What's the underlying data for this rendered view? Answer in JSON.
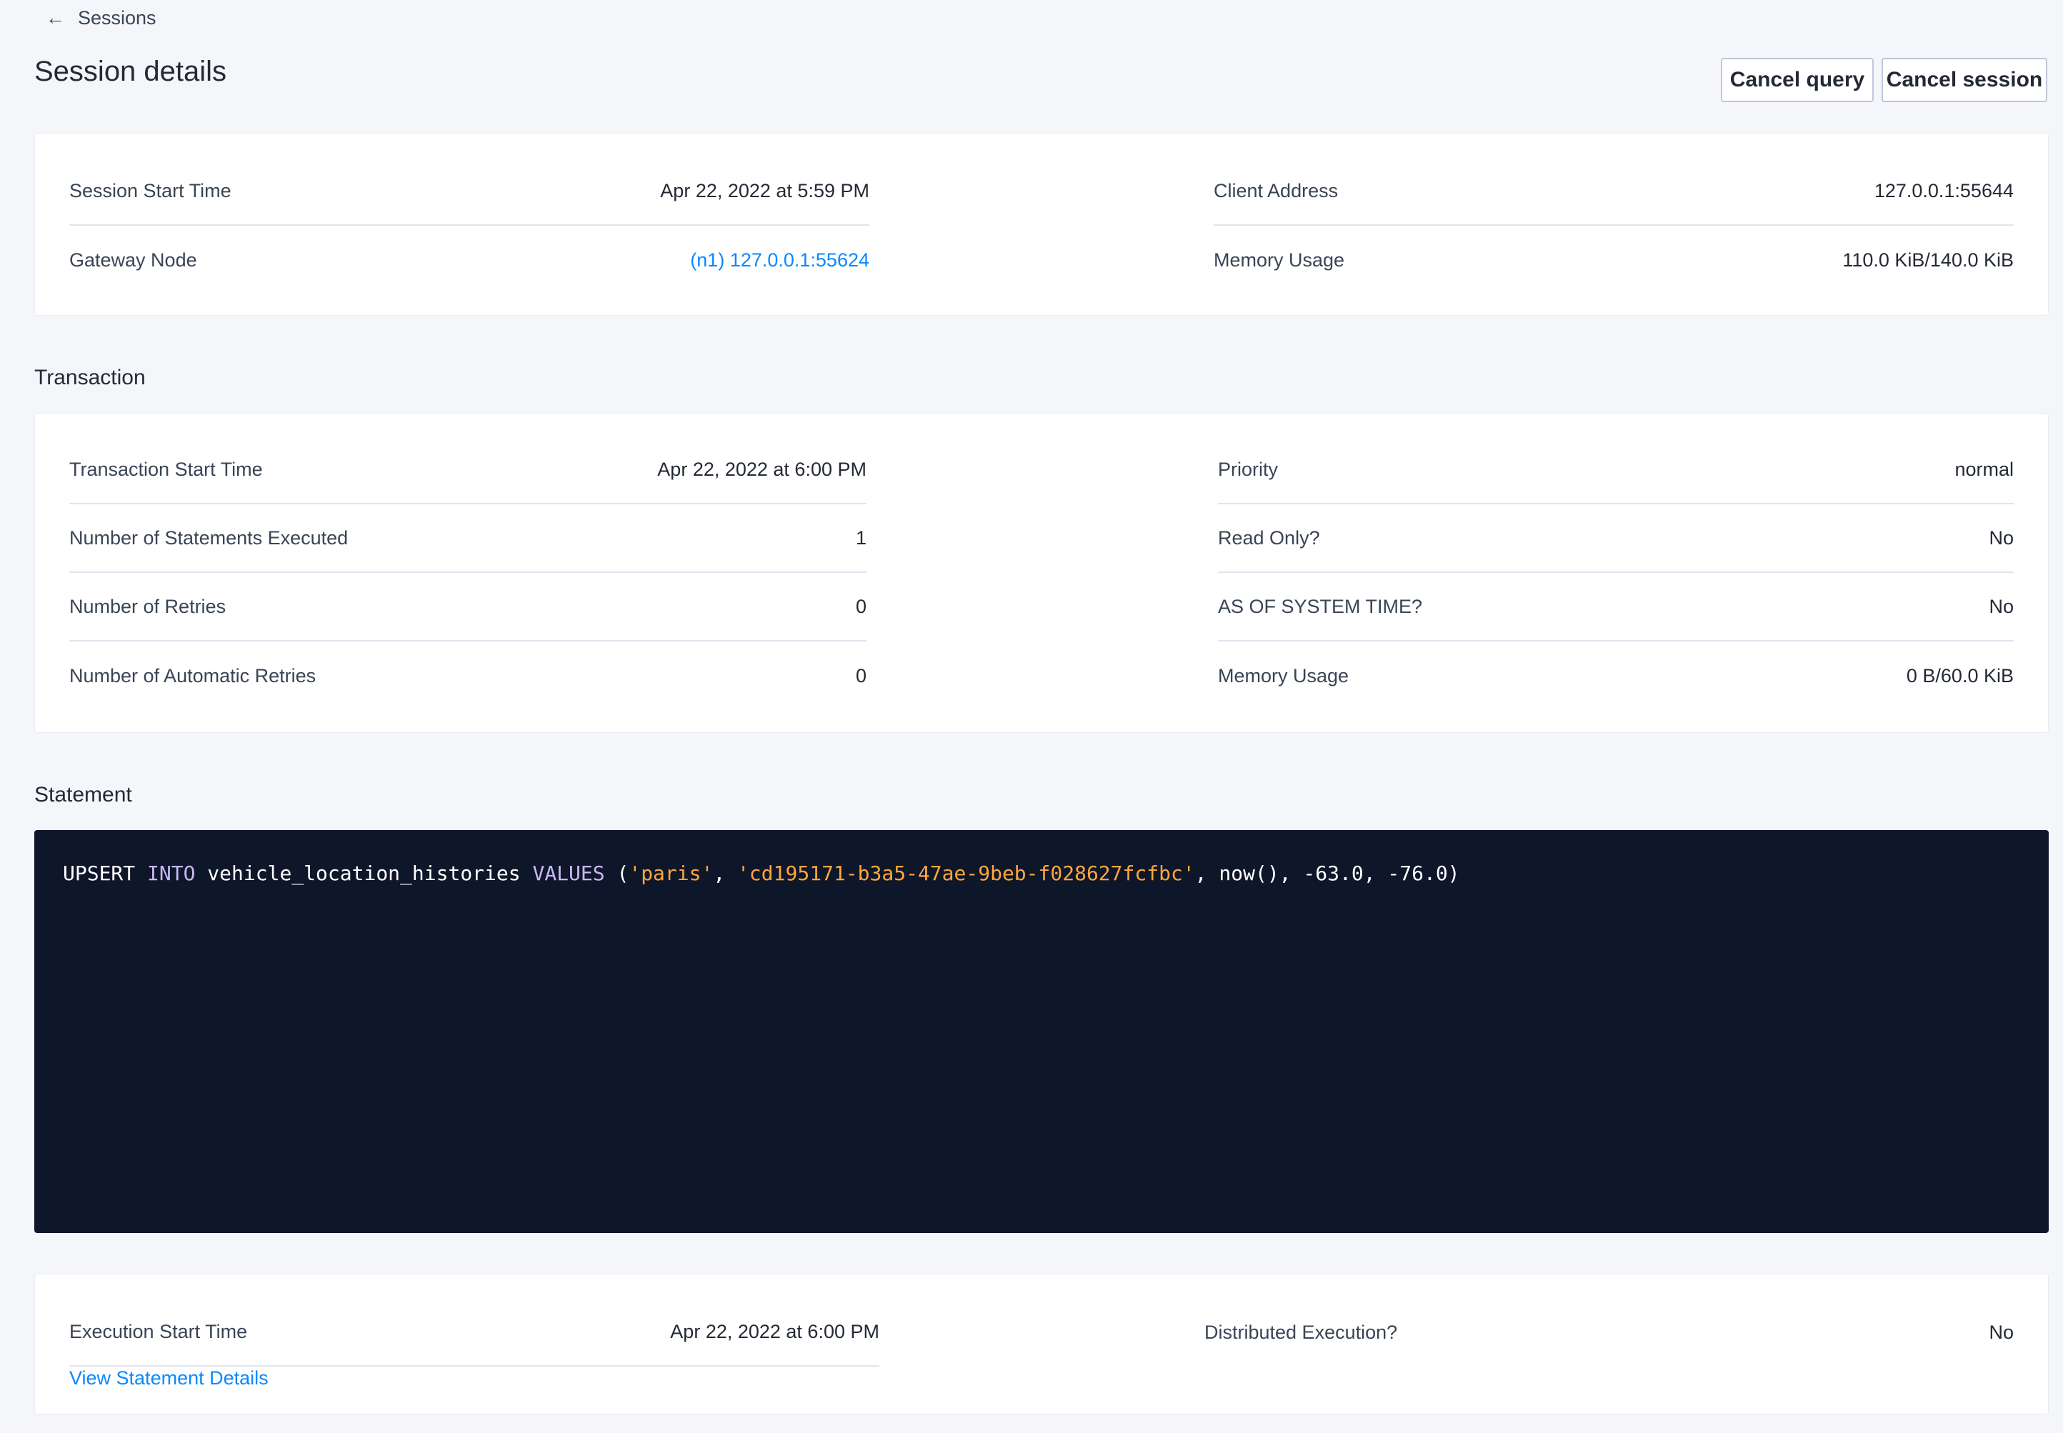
{
  "nav": {
    "back_label": "Sessions",
    "back_icon": "arrow-left-icon"
  },
  "header": {
    "title": "Session details",
    "cancel_query": "Cancel query",
    "cancel_session": "Cancel session"
  },
  "session": {
    "left": [
      {
        "label": "Session Start Time",
        "value": "Apr 22, 2022 at 5:59 PM"
      },
      {
        "label": "Gateway Node",
        "value": "(n1) 127.0.0.1:55624"
      }
    ],
    "right": [
      {
        "label": "Client Address",
        "value": "127.0.0.1:55644"
      },
      {
        "label": "Memory Usage",
        "value": "110.0 KiB/140.0 KiB"
      }
    ]
  },
  "transaction": {
    "heading": "Transaction",
    "left": [
      {
        "label": "Transaction Start Time",
        "value": "Apr 22, 2022 at 6:00 PM"
      },
      {
        "label": "Number of Statements Executed",
        "value": "1"
      },
      {
        "label": "Number of Retries",
        "value": "0"
      },
      {
        "label": "Number of Automatic Retries",
        "value": "0"
      }
    ],
    "right": [
      {
        "label": "Priority",
        "value": "normal"
      },
      {
        "label": "Read Only?",
        "value": "No"
      },
      {
        "label": "AS OF SYSTEM TIME?",
        "value": "No"
      },
      {
        "label": "Memory Usage",
        "value": "0 B/60.0 KiB"
      }
    ]
  },
  "statement": {
    "heading": "Statement",
    "tokens": [
      "UPSERT ",
      "INTO",
      " vehicle_location_histories ",
      "VALUES",
      " (",
      "'paris'",
      ", ",
      "'cd195171-b3a5-47ae-9beb-f028627fcfbc'",
      ", now(), -63.0, -76.0)"
    ],
    "colors": {
      "keyword": "#c9b7f5",
      "string": "#ffa63d",
      "plain": "#ffffff",
      "background": "#0e1629"
    }
  },
  "execution": {
    "left": {
      "label": "Execution Start Time",
      "value": "Apr 22, 2022 at 6:00 PM"
    },
    "link": "View Statement Details",
    "right": {
      "label": "Distributed Execution?",
      "value": "No"
    }
  }
}
